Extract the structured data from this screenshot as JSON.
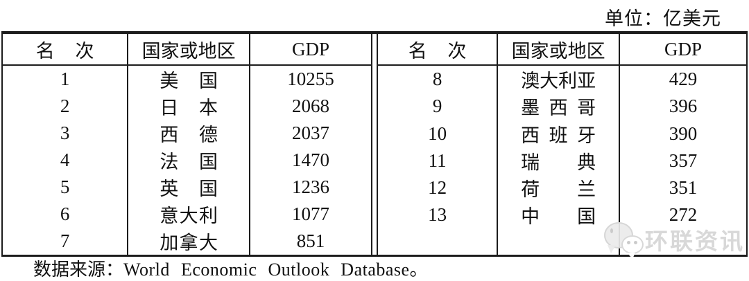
{
  "unit_label": "单位：亿美元",
  "table": {
    "headers": {
      "rank": "名次",
      "country": "国家或地区",
      "gdp": "GDP"
    },
    "left_rows": [
      {
        "rank": "1",
        "country": "美国",
        "gdp": "10255"
      },
      {
        "rank": "2",
        "country": "日本",
        "gdp": "2068"
      },
      {
        "rank": "3",
        "country": "西德",
        "gdp": "2037"
      },
      {
        "rank": "4",
        "country": "法国",
        "gdp": "1470"
      },
      {
        "rank": "5",
        "country": "英国",
        "gdp": "1236"
      },
      {
        "rank": "6",
        "country": "意大利",
        "gdp": "1077"
      },
      {
        "rank": "7",
        "country": "加拿大",
        "gdp": "851"
      }
    ],
    "right_rows": [
      {
        "rank": "8",
        "country": "澳大利亚",
        "gdp": "429"
      },
      {
        "rank": "9",
        "country": "墨西哥",
        "gdp": "396"
      },
      {
        "rank": "10",
        "country": "西班牙",
        "gdp": "390"
      },
      {
        "rank": "11",
        "country": "瑞典",
        "gdp": "357"
      },
      {
        "rank": "12",
        "country": "荷兰",
        "gdp": "351"
      },
      {
        "rank": "13",
        "country": "中国",
        "gdp": "272"
      }
    ]
  },
  "source_note": {
    "label": "数据来源：",
    "text": "World Economic Outlook Database。"
  },
  "watermark": {
    "icon": "chat-bubbles-icon",
    "text": "环联资讯"
  },
  "colors": {
    "background": "#ffffff",
    "text": "#111111",
    "border": "#1c1c1c",
    "watermark": "#cecece"
  }
}
